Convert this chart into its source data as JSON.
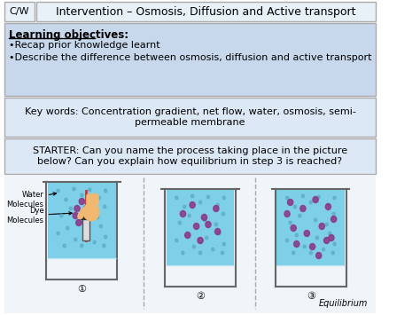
{
  "title": "Intervention – Osmosis, Diffusion and Active transport",
  "cw_label": "C/W",
  "header_bg": "#e8f0f8",
  "section1_bg": "#c8d8ec",
  "section2_bg": "#dce8f5",
  "section3_bg": "#dce8f5",
  "section4_bg": "#f0f5fa",
  "learning_objectives_title": "Learning objectives:",
  "bullet1": "•Recap prior knowledge learnt",
  "bullet2": "•Describe the difference between osmosis, diffusion and active transport",
  "keywords_text": "Key words: Concentration gradient, net flow, water, osmosis, semi-\npermeable membrane",
  "starter_text": "STARTER: Can you name the process taking place in the picture\nbelow? Can you explain how equilibrium in step 3 is reached?",
  "beaker_fill_color": "#7ecfe8",
  "dye_cluster_color": "#8b3a8b",
  "water_dot_color": "#5ba8c4",
  "label_dye": "Dye\nMolecules",
  "label_water": "Water\nMolecules",
  "label_eq": "Equilibrium",
  "circ_nums": [
    "①",
    "②",
    "③"
  ],
  "bg_color": "#ffffff"
}
